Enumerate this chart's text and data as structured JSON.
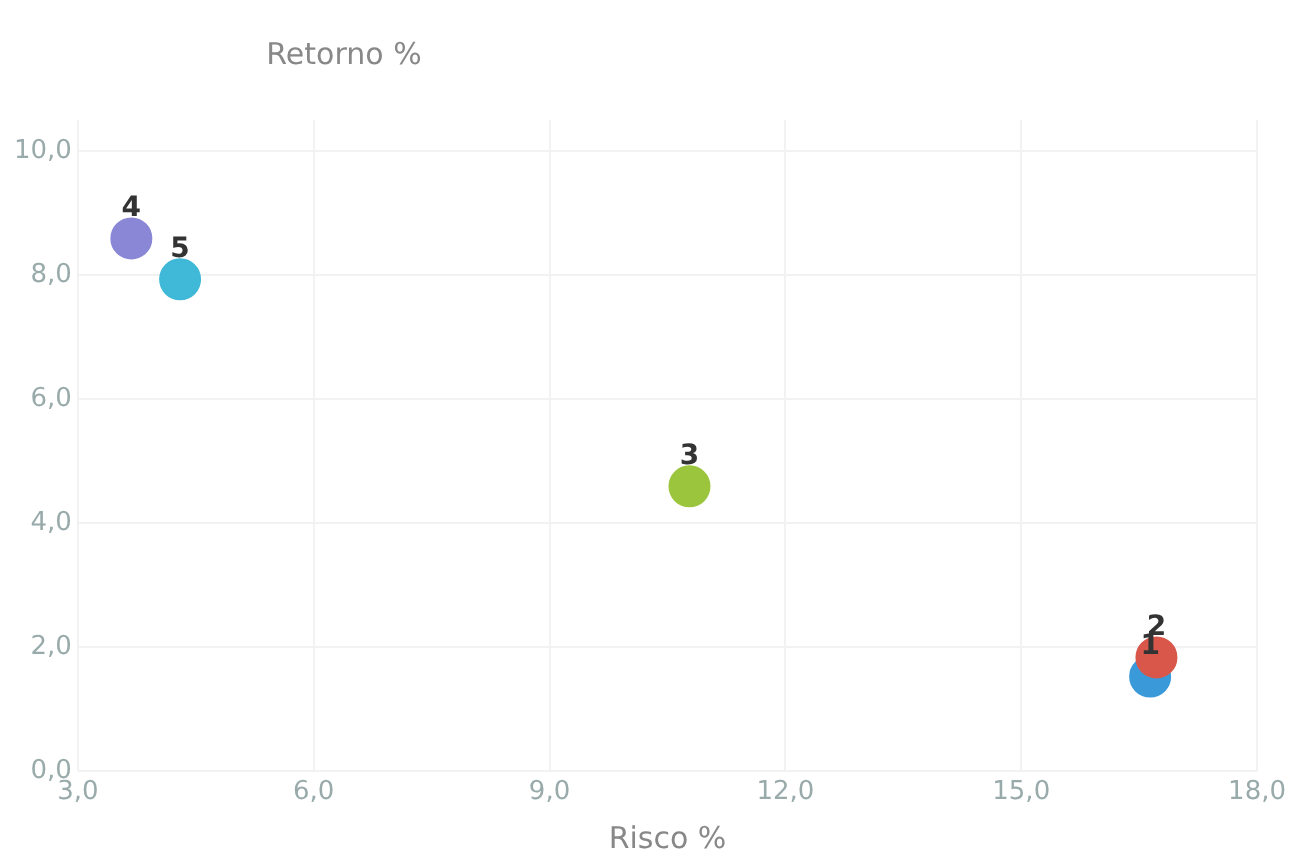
{
  "chart_data": {
    "type": "scatter",
    "xlabel": "Risco %",
    "ylabel": "Retorno %",
    "xlim": [
      3,
      18
    ],
    "ylim": [
      0,
      10.5
    ],
    "xticks": [
      {
        "value": 3,
        "label": "3,0"
      },
      {
        "value": 6,
        "label": "6,0"
      },
      {
        "value": 9,
        "label": "9,0"
      },
      {
        "value": 12,
        "label": "12,0"
      },
      {
        "value": 15,
        "label": "15,0"
      },
      {
        "value": 18,
        "label": "18,0"
      }
    ],
    "yticks": [
      {
        "value": 0,
        "label": "0,0"
      },
      {
        "value": 2,
        "label": "2,0"
      },
      {
        "value": 4,
        "label": "4,0"
      },
      {
        "value": 6,
        "label": "6,0"
      },
      {
        "value": 8,
        "label": "8,0"
      },
      {
        "value": 10,
        "label": "10,0"
      }
    ],
    "grid": true,
    "legend": false,
    "marker": "circle",
    "series": [
      {
        "name": "1",
        "color": "#3a9ad9",
        "x": [
          16.64
        ],
        "values": [
          1.52
        ]
      },
      {
        "name": "2",
        "color": "#d9574a",
        "x": [
          16.72
        ],
        "values": [
          1.83
        ]
      },
      {
        "name": "3",
        "color": "#9bc53d",
        "x": [
          10.78
        ],
        "values": [
          4.59
        ]
      },
      {
        "name": "4",
        "color": "#8a87d6",
        "x": [
          3.68
        ],
        "values": [
          8.59
        ]
      },
      {
        "name": "5",
        "color": "#40b8d8",
        "x": [
          4.3
        ],
        "values": [
          7.93
        ]
      }
    ]
  }
}
